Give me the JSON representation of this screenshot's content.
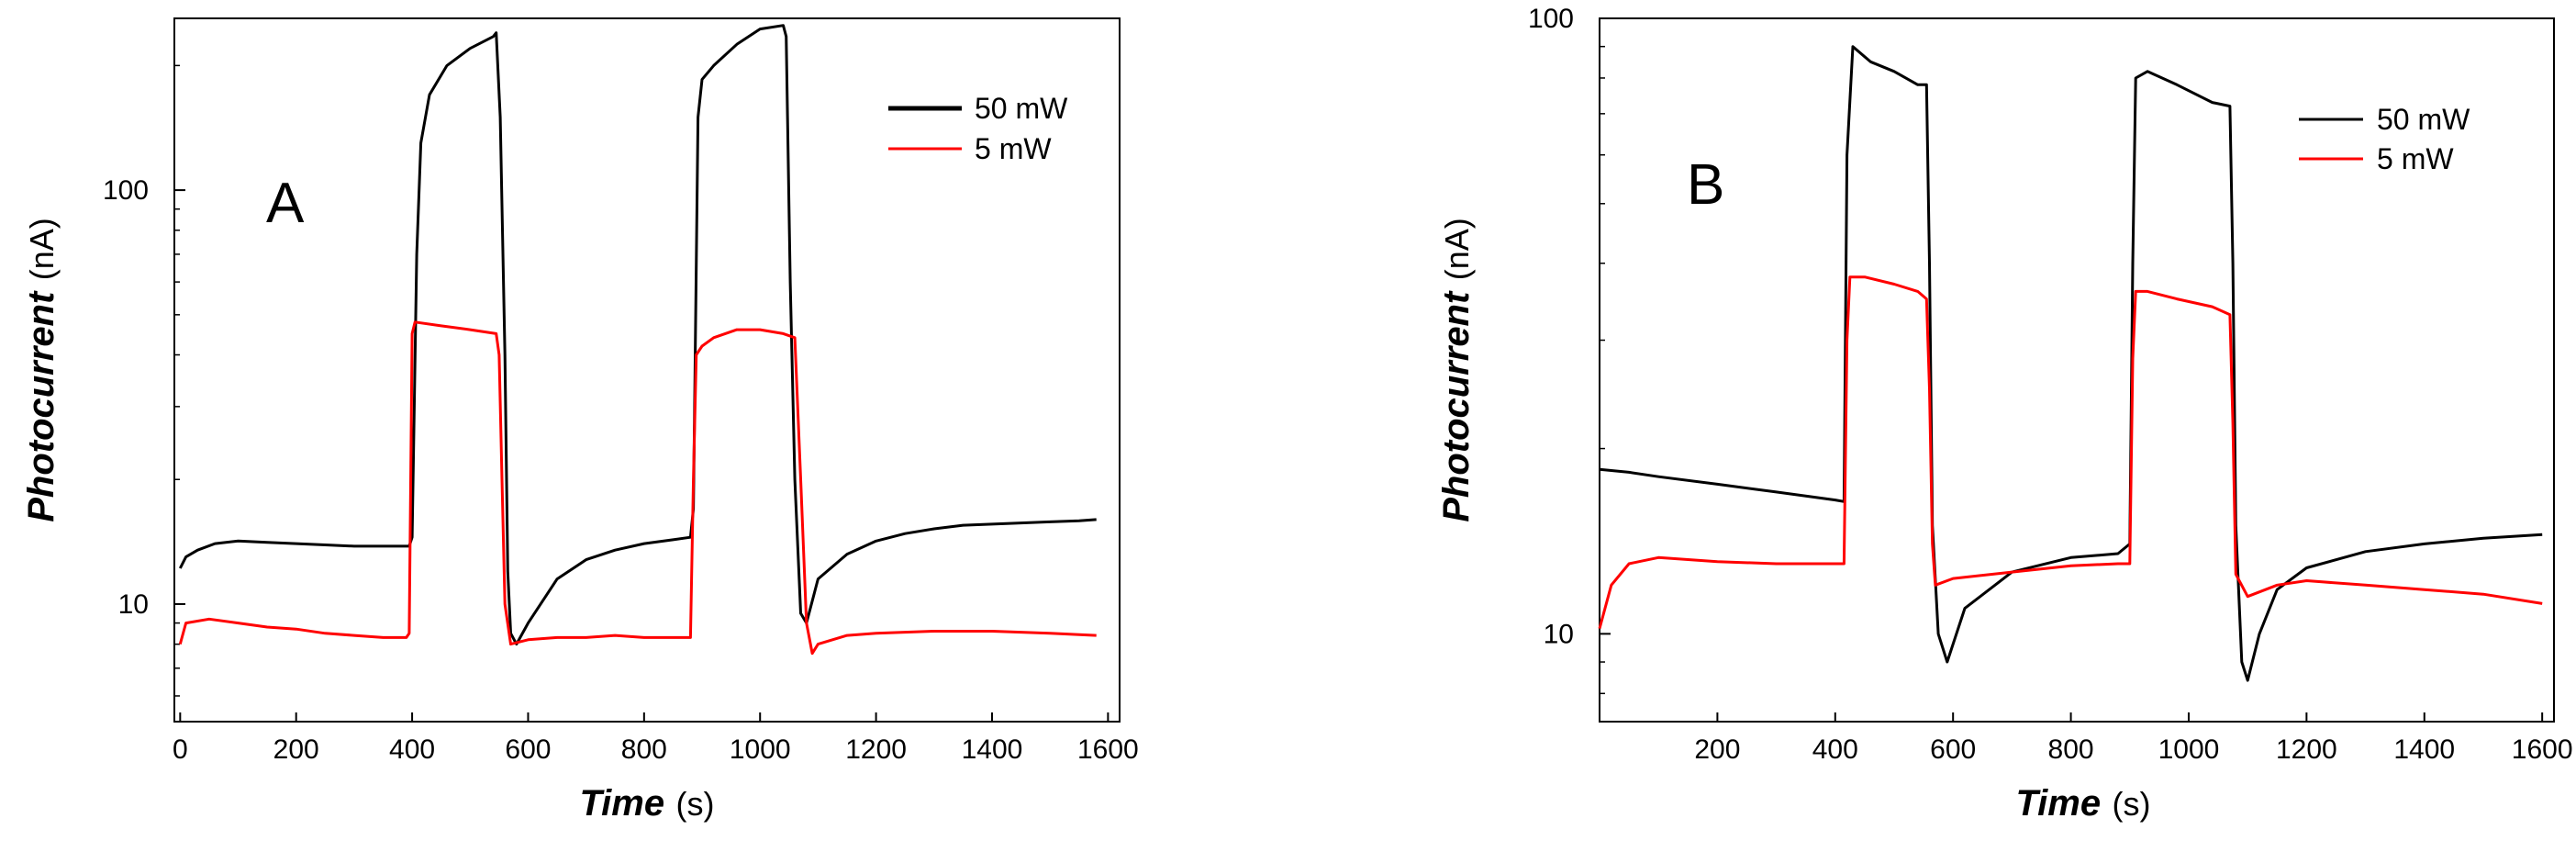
{
  "chart_data": [
    {
      "type": "line",
      "panel_label": "A",
      "xlabel": "Time",
      "xunit": "(s)",
      "ylabel": "Photocurrent",
      "yunit": "(nA)",
      "yscale": "log",
      "xlim": [
        -10,
        1620
      ],
      "ylim": [
        5.2,
        260
      ],
      "xticks": [
        0,
        200,
        400,
        600,
        800,
        1000,
        1200,
        1400,
        1600
      ],
      "xtick_labels": [
        "0",
        "200",
        "400",
        "600",
        "800",
        "1000",
        "1200",
        "1400",
        "1600"
      ],
      "yticks": [
        10,
        100
      ],
      "ytick_labels": [
        "10",
        "100"
      ],
      "legend_position": "top-right",
      "series": [
        {
          "name": "50 mW",
          "color": "#000000",
          "x": [
            0,
            10,
            30,
            60,
            100,
            150,
            200,
            250,
            300,
            350,
            395,
            400,
            408,
            415,
            430,
            460,
            500,
            540,
            545,
            552,
            560,
            565,
            570,
            580,
            600,
            650,
            700,
            750,
            800,
            850,
            880,
            885,
            893,
            900,
            920,
            960,
            1000,
            1040,
            1045,
            1052,
            1060,
            1070,
            1080,
            1100,
            1150,
            1200,
            1250,
            1300,
            1350,
            1400,
            1450,
            1500,
            1550,
            1580
          ],
          "y": [
            12.2,
            13.0,
            13.5,
            14.0,
            14.2,
            14.1,
            14.0,
            13.9,
            13.8,
            13.8,
            13.8,
            14.5,
            70,
            130,
            170,
            200,
            220,
            235,
            240,
            150,
            40,
            12,
            8.5,
            8.0,
            9.0,
            11.5,
            12.8,
            13.5,
            14.0,
            14.3,
            14.5,
            17,
            150,
            185,
            200,
            225,
            245,
            250,
            235,
            60,
            20,
            9.5,
            9.0,
            11.5,
            13.2,
            14.2,
            14.8,
            15.2,
            15.5,
            15.6,
            15.7,
            15.8,
            15.9,
            16.0
          ]
        },
        {
          "name": "5 mW",
          "color": "#ff0000",
          "x": [
            0,
            10,
            50,
            100,
            150,
            200,
            250,
            300,
            350,
            390,
            395,
            400,
            405,
            450,
            500,
            545,
            550,
            555,
            560,
            570,
            600,
            650,
            700,
            750,
            800,
            850,
            880,
            885,
            890,
            900,
            920,
            960,
            1000,
            1040,
            1060,
            1070,
            1080,
            1090,
            1100,
            1150,
            1200,
            1300,
            1400,
            1500,
            1580
          ],
          "y": [
            8.0,
            9.0,
            9.2,
            9.0,
            8.8,
            8.7,
            8.5,
            8.4,
            8.3,
            8.3,
            8.5,
            45,
            48,
            47,
            46,
            45,
            40,
            20,
            10,
            8.0,
            8.2,
            8.3,
            8.3,
            8.4,
            8.3,
            8.3,
            8.3,
            20,
            40,
            42,
            44,
            46,
            46,
            45,
            44,
            20,
            9.0,
            7.6,
            8.0,
            8.4,
            8.5,
            8.6,
            8.6,
            8.5,
            8.4
          ]
        }
      ]
    },
    {
      "type": "line",
      "panel_label": "B",
      "xlabel": "Time",
      "xunit": "(s)",
      "ylabel": "Photocurrent",
      "yunit": "(nA)",
      "yscale": "log",
      "xlim": [
        0,
        1620
      ],
      "ylim": [
        7.2,
        100
      ],
      "xticks": [
        200,
        400,
        600,
        800,
        1000,
        1200,
        1400,
        1600
      ],
      "xtick_labels": [
        "200",
        "400",
        "600",
        "800",
        "1000",
        "1200",
        "1400",
        "1600"
      ],
      "yticks": [
        10,
        100
      ],
      "ytick_labels": [
        "10",
        "100"
      ],
      "legend_position": "top-right",
      "series": [
        {
          "name": "50 mW",
          "color": "#000000",
          "x": [
            0,
            50,
            100,
            200,
            300,
            400,
            415,
            420,
            430,
            460,
            500,
            540,
            555,
            560,
            565,
            575,
            590,
            620,
            700,
            800,
            880,
            900,
            905,
            910,
            930,
            980,
            1040,
            1070,
            1075,
            1080,
            1090,
            1100,
            1120,
            1150,
            1200,
            1300,
            1400,
            1500,
            1600
          ],
          "y": [
            18.5,
            18.3,
            18.0,
            17.5,
            17.0,
            16.5,
            16.4,
            60,
            90,
            85,
            82,
            78,
            78,
            40,
            15,
            10,
            9.0,
            11,
            12.6,
            13.3,
            13.5,
            14,
            40,
            80,
            82,
            78,
            73,
            72,
            40,
            15,
            9.0,
            8.4,
            10,
            11.8,
            12.8,
            13.6,
            14.0,
            14.3,
            14.5
          ]
        },
        {
          "name": "5 mW",
          "color": "#ff0000",
          "x": [
            0,
            20,
            50,
            100,
            150,
            200,
            300,
            400,
            415,
            420,
            425,
            450,
            500,
            540,
            555,
            560,
            565,
            570,
            600,
            700,
            800,
            880,
            900,
            905,
            910,
            930,
            980,
            1040,
            1070,
            1075,
            1080,
            1100,
            1150,
            1200,
            1300,
            1400,
            1500,
            1600
          ],
          "y": [
            10.2,
            12.0,
            13.0,
            13.3,
            13.2,
            13.1,
            13.0,
            13.0,
            13.0,
            30,
            38,
            38,
            37,
            36,
            35,
            25,
            14,
            12.0,
            12.3,
            12.6,
            12.9,
            13.0,
            13.0,
            28,
            36,
            36,
            35,
            34,
            33,
            22,
            12.5,
            11.5,
            12.0,
            12.2,
            12.0,
            11.8,
            11.6,
            11.2
          ]
        }
      ]
    }
  ]
}
